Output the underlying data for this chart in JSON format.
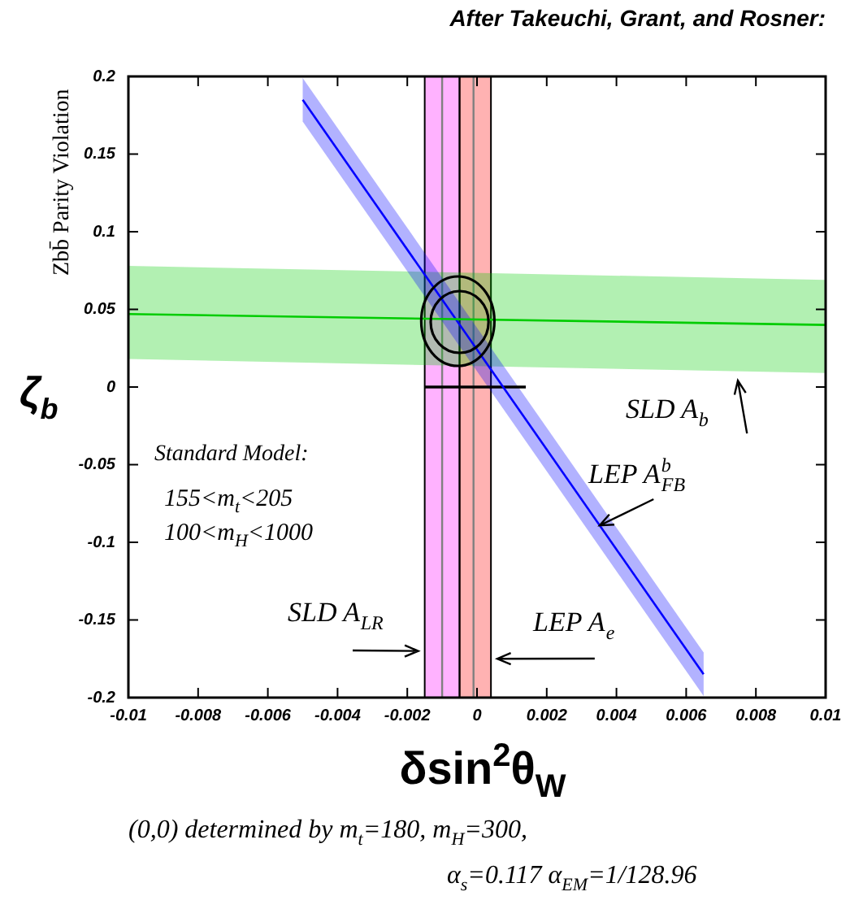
{
  "chart_data": {
    "type": "line",
    "title": "After Takeuchi, Grant, and Rosner:",
    "xlabel": "δsin$^{2}$θ$_{W}$",
    "ylabel": "ζ$_{b}$",
    "xlim": [
      -0.01,
      0.01
    ],
    "xticks": [
      -0.01,
      -0.008,
      -0.006,
      -0.004,
      -0.002,
      0,
      0.002,
      0.004,
      0.006,
      0.008,
      0.01
    ],
    "ylim": [
      -0.2,
      0.2
    ],
    "yticks": [
      -0.2,
      -0.15,
      -0.1,
      -0.05,
      0,
      0.05,
      0.1,
      0.15,
      0.2
    ],
    "grid": false,
    "legend": false,
    "series": [
      {
        "color": "#00cc00",
        "x": [
          -0.01,
          0.01
        ],
        "values": [
          0.047,
          0.04
        ],
        "lower": [
          0.018,
          0.009
        ],
        "upper": [
          0.078,
          0.069
        ]
      },
      {
        "color": "#0000ff",
        "x": [
          -0.005,
          0.0065
        ],
        "values": [
          0.185,
          -0.185
        ],
        "lower": [
          0.171,
          -0.199
        ],
        "upper": [
          0.199,
          -0.171
        ]
      },
      {
        "color": "#000000",
        "x": [
          -0.0015,
          0.0014
        ],
        "values": [
          0,
          0
        ]
      }
    ],
    "bands": [
      {
        "axis": "x",
        "from": -0.0015,
        "to": -0.0005,
        "color": "#ff00ff"
      },
      {
        "axis": "x",
        "from": -0.0005,
        "to": 0.0004,
        "color": "#ff0000"
      }
    ],
    "ref_lines": [
      {
        "axis": "x",
        "value": -0.001,
        "color": "#808080"
      },
      {
        "axis": "x",
        "value": -0.0001,
        "color": "#808080"
      }
    ],
    "annotations": [
      "Standard Model:",
      "155<m$_{t}$<205",
      "100<m$_{H}$<1000",
      {
        "text": "SLD A$_{b}$",
        "x": 0.0075,
        "y": 0.01
      },
      {
        "text": "LEP A$^{b}$$_{FB}$",
        "x": 0.0037,
        "y": -0.086
      },
      {
        "text": "SLD A$_{LR}$",
        "x": -0.0015,
        "y": -0.17
      },
      {
        "text": "LEP A$_{e}$",
        "x": 0.0004,
        "y": -0.175
      },
      "(0,0) determined by m$_{t}$=180, m$_{H}$=300,",
      "α$_{s}$=0.117 α$_{EM}$=1/128.96",
      "Zbb̄ Parity Violation"
    ]
  }
}
